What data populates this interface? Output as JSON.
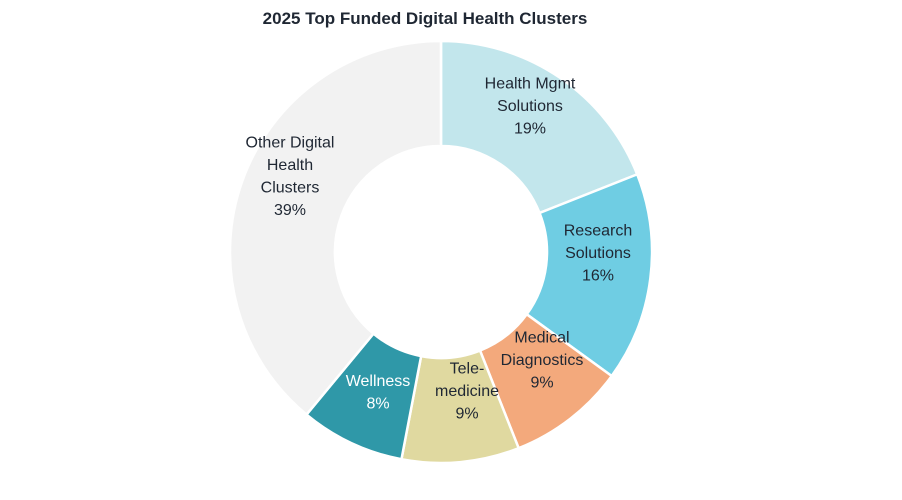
{
  "chart_data": {
    "type": "pie",
    "variant": "donut",
    "title": "2025 Top Funded Digital Health Clusters",
    "start": "top",
    "direction": "clockwise",
    "slices": [
      {
        "label": [
          "Health Mgmt",
          "Solutions"
        ],
        "value": 19,
        "display": "19%",
        "color": "#c2e6ec",
        "text_color": "#1f2733"
      },
      {
        "label": [
          "Research",
          "Solutions"
        ],
        "value": 16,
        "display": "16%",
        "color": "#6fcde3",
        "text_color": "#1f2733"
      },
      {
        "label": [
          "Medical",
          "Diagnostics"
        ],
        "value": 9,
        "display": "9%",
        "color": "#f3a97c",
        "text_color": "#1f2733"
      },
      {
        "label": [
          "Tele-",
          "medicine"
        ],
        "value": 9,
        "display": "9%",
        "color": "#e0d9a0",
        "text_color": "#1f2733"
      },
      {
        "label": [
          "Wellness"
        ],
        "value": 8,
        "display": "8%",
        "color": "#2f98a8",
        "text_color": "#ffffff"
      },
      {
        "label": [
          "Other Digital",
          "Health",
          "Clusters"
        ],
        "value": 39,
        "display": "39%",
        "color": "#f2f2f2",
        "text_color": "#1f2733"
      }
    ],
    "legend": "none"
  }
}
